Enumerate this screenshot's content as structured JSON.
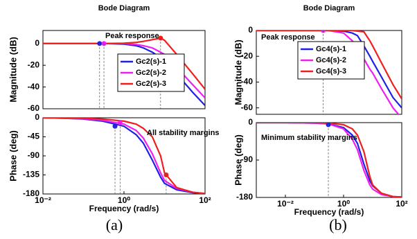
{
  "captions": [
    "(a)",
    "(b)"
  ],
  "chart_data": [
    {
      "type": "line",
      "xscale": "log",
      "title": "Bode Diagram",
      "ylabel": "Magnitude (dB)",
      "annotation": "Peak response",
      "x": [
        0.01,
        0.03,
        0.1,
        0.3,
        1,
        2,
        3,
        5,
        8,
        10,
        20,
        50,
        100
      ],
      "xlim": [
        0.01,
        100
      ],
      "ylim": [
        -60,
        12
      ],
      "yticks": [
        0,
        -20,
        -40,
        -60
      ],
      "legend": "center-right",
      "series": [
        {
          "name": "Gc2(s)-1",
          "color": "#1f1fe6",
          "values": [
            0,
            0,
            0,
            0,
            -0.5,
            -2,
            -4,
            -8,
            -13,
            -16,
            -28,
            -45,
            -57
          ]
        },
        {
          "name": "Gc2(s)-2",
          "color": "#f01df0",
          "values": [
            0,
            0,
            0,
            0,
            0,
            -1,
            -2,
            -4,
            -8,
            -10,
            -22,
            -38,
            -50
          ]
        },
        {
          "name": "Gc2(s)-3",
          "color": "#f01e1e",
          "values": [
            0,
            0,
            0,
            0,
            0.3,
            1,
            2,
            3.5,
            5,
            3,
            -10,
            -28,
            -42
          ]
        }
      ],
      "points": [
        {
          "x": 0.25,
          "y": 0,
          "color": "#1f1fe6"
        },
        {
          "x": 0.32,
          "y": 0,
          "color": "#f01df0"
        },
        {
          "x": 8,
          "y": 5,
          "color": "#f01e1e"
        }
      ]
    },
    {
      "type": "line",
      "xscale": "log",
      "ylabel": "Phase (deg)",
      "xlabel": "Frequency  (rad/s)",
      "annotation": "All stability margins",
      "x": [
        0.01,
        0.03,
        0.1,
        0.3,
        1,
        2,
        3,
        5,
        8,
        10,
        20,
        50,
        100
      ],
      "xlim": [
        0.01,
        100
      ],
      "ylim": [
        -180,
        0
      ],
      "yticks": [
        0,
        -45,
        -90,
        -135,
        -180
      ],
      "xticks": [
        {
          "value": 0.01,
          "label": "10⁻²"
        },
        {
          "value": 1,
          "label": "10⁰"
        },
        {
          "value": 100,
          "label": "10²"
        }
      ],
      "series": [
        {
          "name": "Gc2(s)-1",
          "color": "#1f1fe6",
          "values": [
            0,
            -1,
            -3,
            -8,
            -20,
            -40,
            -60,
            -100,
            -140,
            -155,
            -170,
            -177,
            -179
          ]
        },
        {
          "name": "Gc2(s)-2",
          "color": "#f01df0",
          "values": [
            0,
            -1,
            -2,
            -6,
            -15,
            -30,
            -48,
            -85,
            -130,
            -148,
            -167,
            -176,
            -179
          ]
        },
        {
          "name": "Gc2(s)-3",
          "color": "#f01e1e",
          "values": [
            0,
            0,
            -1,
            -3,
            -8,
            -15,
            -25,
            -45,
            -90,
            -130,
            -165,
            -176,
            -179
          ]
        }
      ],
      "points": [
        {
          "x": 0.6,
          "y": -20,
          "color": "#1f1fe6"
        },
        {
          "x": 0.8,
          "y": -12,
          "color": "#f01df0"
        },
        {
          "x": 11,
          "y": -135,
          "color": "#f01e1e"
        }
      ]
    },
    {
      "type": "line",
      "xscale": "log",
      "title": "Bode Diagram",
      "ylabel": "Magnitude (dB)",
      "annotation": "Peak response",
      "x": [
        0.001,
        0.01,
        0.1,
        0.3,
        1,
        2,
        3,
        5,
        8,
        10,
        20,
        50,
        100
      ],
      "xlim": [
        0.001,
        100
      ],
      "ylim": [
        -65,
        0
      ],
      "yticks": [
        0,
        -20,
        -40,
        -60
      ],
      "legend": "upper-center",
      "series": [
        {
          "name": "Gc4(s)-1",
          "color": "#1f1fe6",
          "values": [
            0,
            0,
            0,
            0,
            -0.5,
            -2,
            -4,
            -12,
            -20,
            -24,
            -36,
            -52,
            -60
          ]
        },
        {
          "name": "Gc4(s)-2",
          "color": "#f01df0",
          "values": [
            0,
            0,
            0,
            0,
            -2,
            -8,
            -14,
            -22,
            -30,
            -33,
            -45,
            -60,
            -68
          ]
        },
        {
          "name": "Gc4(s)-3",
          "color": "#f01e1e",
          "values": [
            0,
            0,
            0,
            0,
            0,
            0,
            -0.5,
            -1,
            -8,
            -12,
            -25,
            -42,
            -53
          ]
        }
      ],
      "points": [
        {
          "x": 0.2,
          "y": 0,
          "color": "#f01df0"
        }
      ]
    },
    {
      "type": "line",
      "xscale": "log",
      "ylabel": "Phase (deg)",
      "xlabel": "Frequency  (rad/s)",
      "annotation": "Minimum stability margins",
      "x": [
        0.001,
        0.01,
        0.1,
        0.3,
        1,
        2,
        3,
        5,
        8,
        10,
        20,
        50,
        100
      ],
      "xlim": [
        0.001,
        100
      ],
      "ylim": [
        -180,
        0
      ],
      "yticks": [
        0,
        -90,
        -180
      ],
      "xticks": [
        {
          "value": 0.01,
          "label": "10⁻²"
        },
        {
          "value": 1,
          "label": "10⁰"
        },
        {
          "value": 100,
          "label": "10²"
        }
      ],
      "series": [
        {
          "name": "Gc4(s)-1",
          "color": "#1f1fe6",
          "values": [
            0,
            0,
            -1,
            -3,
            -12,
            -30,
            -50,
            -100,
            -140,
            -152,
            -170,
            -178,
            -179
          ]
        },
        {
          "name": "Gc4(s)-2",
          "color": "#f01df0",
          "values": [
            0,
            0,
            -1,
            -3,
            -15,
            -40,
            -65,
            -115,
            -150,
            -160,
            -173,
            -178,
            -179
          ]
        },
        {
          "name": "Gc4(s)-3",
          "color": "#f01e1e",
          "values": [
            0,
            0,
            0,
            -1,
            -5,
            -15,
            -30,
            -70,
            -130,
            -150,
            -170,
            -178,
            -179
          ]
        }
      ],
      "points": [
        {
          "x": 0.3,
          "y": -5,
          "color": "#1f1fe6"
        }
      ]
    }
  ]
}
